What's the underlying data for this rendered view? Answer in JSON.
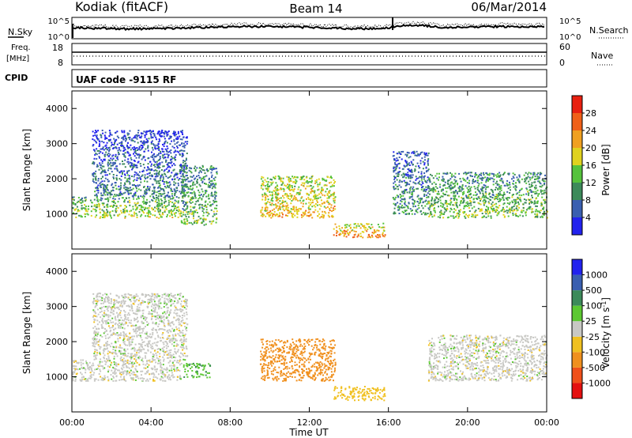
{
  "header": {
    "station": "Kodiak (fitACF)",
    "beam": "Beam 14",
    "date": "06/Mar/2014"
  },
  "top_panels": {
    "nsky": {
      "label": "N.Sky",
      "ticks": [
        "10^5",
        "10^0"
      ]
    },
    "nsearch": {
      "label": "N.Search",
      "ticks": [
        "10^5",
        "10^0"
      ]
    },
    "freq": {
      "label_line1": "Freq.",
      "label_line2": "[MHz]",
      "ticks": [
        "18",
        "8"
      ]
    },
    "nave": {
      "label": "Nave",
      "ticks": [
        "60",
        "0"
      ]
    },
    "cpid": {
      "label": "CPID",
      "value": "UAF code -9115 RF"
    }
  },
  "colors": {
    "power": [
      "#2222ee",
      "#3a5fb0",
      "#3c8a5a",
      "#55c23c",
      "#e0d21e",
      "#f0a020",
      "#f06018",
      "#e82010"
    ],
    "velocity": [
      "#e41010",
      "#f0501a",
      "#f0901e",
      "#f0c020",
      "#c8c8c4",
      "#5cc832",
      "#3c8a5a",
      "#3a5fb0",
      "#2222ee"
    ]
  },
  "chart_data": [
    {
      "type": "heatmap",
      "title": "",
      "ylabel": "Slant Range [km]",
      "xlabel": "Time UT",
      "ylim": [
        0,
        4500
      ],
      "xlim": [
        0,
        24
      ],
      "xticks": [
        "00:00",
        "04:00",
        "08:00",
        "12:00",
        "16:00",
        "20:00",
        "00:00"
      ],
      "yticks": [
        "1000",
        "2000",
        "3000",
        "4000"
      ],
      "colorbar": {
        "label": "Power [dB]",
        "ticks": [
          "4",
          "8",
          "12",
          "16",
          "20",
          "24",
          "28"
        ],
        "range": [
          0,
          32
        ]
      },
      "regions": [
        {
          "t_start": 0.0,
          "t_end": 5.5,
          "r_low": 900,
          "r_high": 1500,
          "power": 14
        },
        {
          "t_start": 1.0,
          "t_end": 5.8,
          "r_low": 1500,
          "r_high": 3400,
          "power": 6
        },
        {
          "t_start": 5.5,
          "t_end": 7.3,
          "r_low": 700,
          "r_high": 2400,
          "power": 11
        },
        {
          "t_start": 9.5,
          "t_end": 13.3,
          "r_low": 900,
          "r_high": 2100,
          "power": 18
        },
        {
          "t_start": 13.2,
          "t_end": 15.8,
          "r_low": 350,
          "r_high": 750,
          "power": 20
        },
        {
          "t_start": 16.2,
          "t_end": 18.0,
          "r_low": 1000,
          "r_high": 2800,
          "power": 8
        },
        {
          "t_start": 18.0,
          "t_end": 24.0,
          "r_low": 900,
          "r_high": 2200,
          "power": 12
        }
      ]
    },
    {
      "type": "heatmap",
      "title": "",
      "ylabel": "Slant Range [km]",
      "xlabel": "Time UT",
      "ylim": [
        0,
        4500
      ],
      "xlim": [
        0,
        24
      ],
      "xticks": [
        "00:00",
        "04:00",
        "08:00",
        "12:00",
        "16:00",
        "20:00",
        "00:00"
      ],
      "yticks": [
        "1000",
        "2000",
        "3000",
        "4000"
      ],
      "colorbar": {
        "label": "Velocity [m s-1]",
        "ticks": [
          "-1000",
          "-500",
          "-100",
          "-25",
          "25",
          "100",
          "500",
          "1000"
        ]
      },
      "regions": [
        {
          "t_start": 0.0,
          "t_end": 5.5,
          "r_low": 900,
          "r_high": 1500,
          "velocity": 0
        },
        {
          "t_start": 1.0,
          "t_end": 5.8,
          "r_low": 1500,
          "r_high": 3400,
          "velocity": 0
        },
        {
          "t_start": 5.6,
          "t_end": 7.0,
          "r_low": 1000,
          "r_high": 1400,
          "velocity": 80
        },
        {
          "t_start": 9.5,
          "t_end": 13.3,
          "r_low": 900,
          "r_high": 2100,
          "velocity": -150
        },
        {
          "t_start": 13.2,
          "t_end": 15.8,
          "r_low": 350,
          "r_high": 750,
          "velocity": -60
        },
        {
          "t_start": 18.0,
          "t_end": 24.0,
          "r_low": 900,
          "r_high": 2200,
          "velocity": 0
        }
      ]
    }
  ]
}
